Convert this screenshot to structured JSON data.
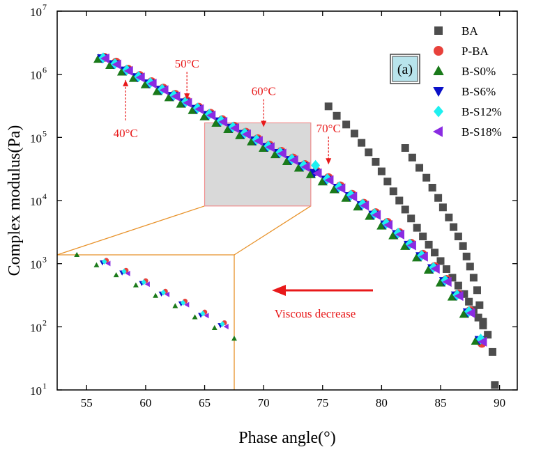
{
  "chart_data": {
    "type": "scatter",
    "title": "",
    "panel_label": "(a)",
    "xlabel": "Phase angle(°)",
    "ylabel": "Complex modulus(Pa)",
    "xlim": [
      52.5,
      91.5
    ],
    "ylim_log10": [
      1,
      7
    ],
    "x_ticks": [
      55,
      60,
      65,
      70,
      75,
      80,
      85,
      90
    ],
    "x_tick_labels": [
      "55",
      "60",
      "65",
      "70",
      "75",
      "80",
      "85",
      "90"
    ],
    "y_tick_exponents": [
      1,
      2,
      3,
      4,
      5,
      6,
      7
    ],
    "y_tick_base": "10",
    "legend_position": "top-right",
    "series": [
      {
        "name": "BA",
        "marker": "square",
        "color": "#4d4d4d",
        "x": [
          75.5,
          76.2,
          77.0,
          77.7,
          78.3,
          78.9,
          79.5,
          80.0,
          80.5,
          81.0,
          81.5,
          82.0,
          82.5,
          83.0,
          83.5,
          84.0,
          84.5,
          85.0,
          85.5,
          86.0,
          86.5,
          87.0,
          87.4,
          87.8,
          88.2,
          88.6,
          89.0,
          89.4,
          89.6,
          82.0,
          82.6,
          83.2,
          83.8,
          84.3,
          84.8,
          85.2,
          85.7,
          86.1,
          86.5,
          86.9,
          87.2,
          87.5,
          87.8,
          88.1,
          88.3,
          88.6
        ],
        "y": [
          310000,
          220000,
          160000,
          115000,
          82000,
          58000,
          41000,
          29000,
          20000,
          14000,
          10000,
          7200,
          5200,
          3700,
          2700,
          2000,
          1500,
          1100,
          820,
          600,
          450,
          330,
          250,
          185,
          140,
          105,
          75,
          40,
          12,
          68000,
          48000,
          33000,
          23000,
          16000,
          11000,
          7800,
          5400,
          3800,
          2700,
          1900,
          1300,
          900,
          600,
          380,
          220,
          120
        ]
      },
      {
        "name": "P-BA",
        "marker": "circle",
        "color": "#e8413b",
        "x": [
          56.5,
          57.5,
          58.5,
          59.5,
          60.5,
          61.5,
          62.5,
          63.5,
          64.5,
          65.5,
          66.5,
          67.5,
          68.5,
          69.5,
          70.5,
          71.5,
          72.5,
          73.5,
          74.5,
          75.5,
          76.5,
          77.5,
          78.5,
          79.5,
          80.5,
          81.5,
          82.5,
          83.5,
          84.5,
          85.5,
          86.5,
          87.5,
          88.5
        ],
        "y": [
          1850000,
          1550000,
          1200000,
          950000,
          760000,
          600000,
          480000,
          380000,
          300000,
          240000,
          190000,
          150000,
          120000,
          95000,
          75000,
          60000,
          47000,
          37000,
          29000,
          23000,
          17000,
          12500,
          9000,
          6400,
          4500,
          3100,
          2100,
          1400,
          900,
          560,
          330,
          180,
          55
        ]
      },
      {
        "name": "B-S0%",
        "marker": "triangle-up",
        "color": "#1a7a1a",
        "x": [
          56.0,
          57.0,
          58.0,
          59.0,
          60.0,
          61.0,
          62.0,
          63.0,
          64.0,
          65.0,
          66.0,
          67.0,
          68.0,
          69.0,
          70.0,
          71.0,
          72.0,
          73.0,
          74.0,
          75.0,
          76.0,
          77.0,
          78.0,
          79.0,
          80.0,
          81.0,
          82.0,
          83.0,
          84.0,
          85.0,
          86.0,
          87.0,
          88.0
        ],
        "y": [
          1750000,
          1400000,
          1100000,
          870000,
          690000,
          540000,
          430000,
          340000,
          270000,
          215000,
          170000,
          135000,
          108000,
          86000,
          68000,
          54000,
          42000,
          33000,
          26000,
          20000,
          15000,
          11000,
          8000,
          5700,
          4000,
          2800,
          1900,
          1250,
          800,
          500,
          300,
          160,
          60
        ]
      },
      {
        "name": "B-S6%",
        "marker": "triangle-down",
        "color": "#0a10c8",
        "x": [
          56.3,
          57.3,
          58.3,
          59.3,
          60.3,
          61.3,
          62.3,
          63.3,
          64.3,
          65.3,
          66.3,
          67.3,
          68.3,
          69.3,
          70.3,
          71.3,
          72.3,
          73.3,
          74.3,
          75.3,
          76.3,
          77.3,
          78.3,
          79.3,
          80.3,
          81.3,
          82.3,
          83.3,
          84.3,
          85.3,
          86.3,
          87.3,
          88.3
        ],
        "y": [
          1800000,
          1450000,
          1150000,
          900000,
          720000,
          570000,
          455000,
          360000,
          285000,
          228000,
          180000,
          143000,
          114000,
          90000,
          71000,
          57000,
          44000,
          35000,
          27500,
          21500,
          16000,
          11800,
          8500,
          6000,
          4200,
          2950,
          2000,
          1320,
          850,
          530,
          315,
          170,
          62
        ]
      },
      {
        "name": "B-S12%",
        "marker": "diamond",
        "color": "#1ef0f0",
        "x": [
          56.4,
          57.4,
          58.4,
          59.4,
          60.4,
          61.4,
          62.4,
          63.4,
          64.4,
          65.4,
          66.4,
          67.4,
          68.4,
          69.4,
          70.4,
          71.4,
          72.4,
          73.4,
          74.4,
          75.4,
          76.4,
          77.4,
          78.4,
          79.4,
          80.4,
          81.4,
          82.4,
          83.4,
          84.4,
          85.4,
          86.4,
          87.4,
          88.4
        ],
        "y": [
          1820000,
          1470000,
          1170000,
          920000,
          735000,
          580000,
          465000,
          368000,
          292000,
          233000,
          184000,
          146000,
          117000,
          92000,
          73000,
          58000,
          45500,
          36000,
          36000,
          22000,
          16500,
          12200,
          8800,
          6200,
          4350,
          3050,
          2050,
          1350,
          870,
          545,
          320,
          175,
          64
        ]
      },
      {
        "name": "B-S18%",
        "marker": "triangle-left",
        "color": "#8a2be2",
        "x": [
          56.6,
          57.6,
          58.6,
          59.6,
          60.6,
          61.6,
          62.6,
          63.6,
          64.6,
          65.6,
          66.6,
          67.6,
          68.6,
          69.6,
          70.6,
          71.6,
          72.6,
          73.6,
          74.6,
          75.6,
          76.6,
          77.6,
          78.6,
          79.6,
          80.6,
          81.6,
          82.6,
          83.6,
          84.6,
          85.6,
          86.6,
          87.6,
          88.6
        ],
        "y": [
          1780000,
          1430000,
          1130000,
          890000,
          710000,
          560000,
          445000,
          352000,
          280000,
          223000,
          176000,
          140000,
          112000,
          88000,
          70000,
          55500,
          43500,
          34000,
          27000,
          21000,
          15600,
          11500,
          8300,
          5900,
          4100,
          2900,
          1950,
          1290,
          830,
          515,
          308,
          165,
          58
        ]
      }
    ],
    "annotations": [
      {
        "text": "40°C",
        "arrow_x": 58.3,
        "arrow_y": 900000,
        "direction": "up"
      },
      {
        "text": "50°C",
        "arrow_x": 63.5,
        "arrow_y": 340000,
        "direction": "down"
      },
      {
        "text": "60°C",
        "arrow_x": 70.0,
        "arrow_y": 125000,
        "direction": "down"
      },
      {
        "text": "70°C",
        "arrow_x": 75.5,
        "arrow_y": 32000,
        "direction": "down"
      },
      {
        "text": "Viscous decrease",
        "direction": "left"
      }
    ],
    "zoom_box": {
      "x_range": [
        65.0,
        74.0
      ],
      "y_range": [
        8200,
        170000
      ]
    }
  }
}
